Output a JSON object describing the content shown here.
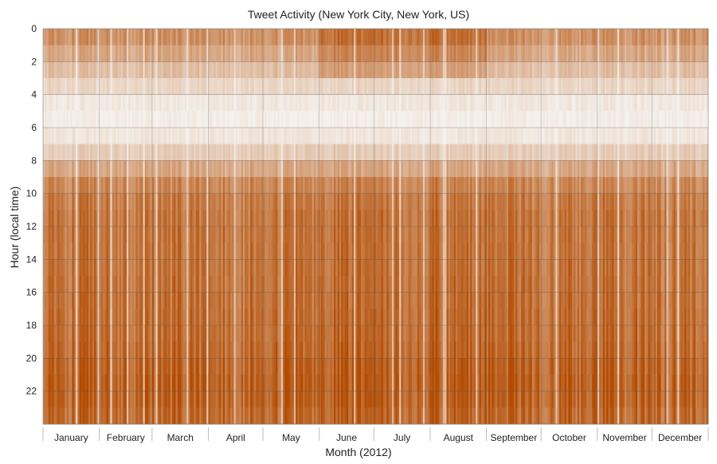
{
  "chart_data": {
    "type": "heatmap",
    "title": "Tweet Activity (New York City, New York, US)",
    "xlabel": "Month (2012)",
    "ylabel": "Hour (local time)",
    "x_categories": [
      "January",
      "February",
      "March",
      "April",
      "May",
      "June",
      "July",
      "August",
      "September",
      "October",
      "November",
      "December"
    ],
    "days_per_month": [
      31,
      29,
      31,
      30,
      31,
      30,
      31,
      31,
      30,
      31,
      30,
      31
    ],
    "y_ticks": [
      0,
      2,
      4,
      6,
      8,
      10,
      12,
      14,
      16,
      18,
      20,
      22
    ],
    "ylim": [
      0,
      24
    ],
    "y_inverted": true,
    "grid": true,
    "colormap": {
      "low": "#f5f2ee",
      "high": "#b24a00"
    },
    "hourly_activity_profile": [
      0.62,
      0.48,
      0.33,
      0.18,
      0.07,
      0.03,
      0.08,
      0.24,
      0.48,
      0.68,
      0.76,
      0.79,
      0.8,
      0.8,
      0.81,
      0.82,
      0.83,
      0.84,
      0.85,
      0.87,
      0.91,
      0.93,
      0.92,
      0.88
    ],
    "summer_months_activity_boost": [
      "June",
      "July",
      "August"
    ]
  }
}
